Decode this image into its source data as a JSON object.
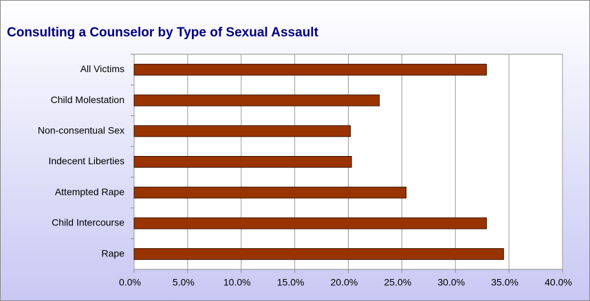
{
  "chart_data": {
    "type": "bar",
    "orientation": "horizontal",
    "title": "Consulting a Counselor by Type of Sexual Assault",
    "categories": [
      "All Victims",
      "Child Molestation",
      "Non-consentual Sex",
      "Indecent Liberties",
      "Attempted Rape",
      "Child Intercourse",
      "Rape"
    ],
    "values": [
      32.9,
      22.9,
      20.2,
      20.3,
      25.4,
      32.9,
      34.5
    ],
    "color": "#993300",
    "xlim": [
      0,
      40
    ],
    "xticks": [
      {
        "value": 0,
        "label": "0.0%"
      },
      {
        "value": 5,
        "label": "5.0%"
      },
      {
        "value": 10,
        "label": "10.0%"
      },
      {
        "value": 15,
        "label": "15.0%"
      },
      {
        "value": 20,
        "label": "20.0%"
      },
      {
        "value": 25,
        "label": "25.0%"
      },
      {
        "value": 30,
        "label": "30.0%"
      },
      {
        "value": 35,
        "label": "35.0%"
      },
      {
        "value": 40,
        "label": "40.0%"
      }
    ],
    "grid": true
  }
}
